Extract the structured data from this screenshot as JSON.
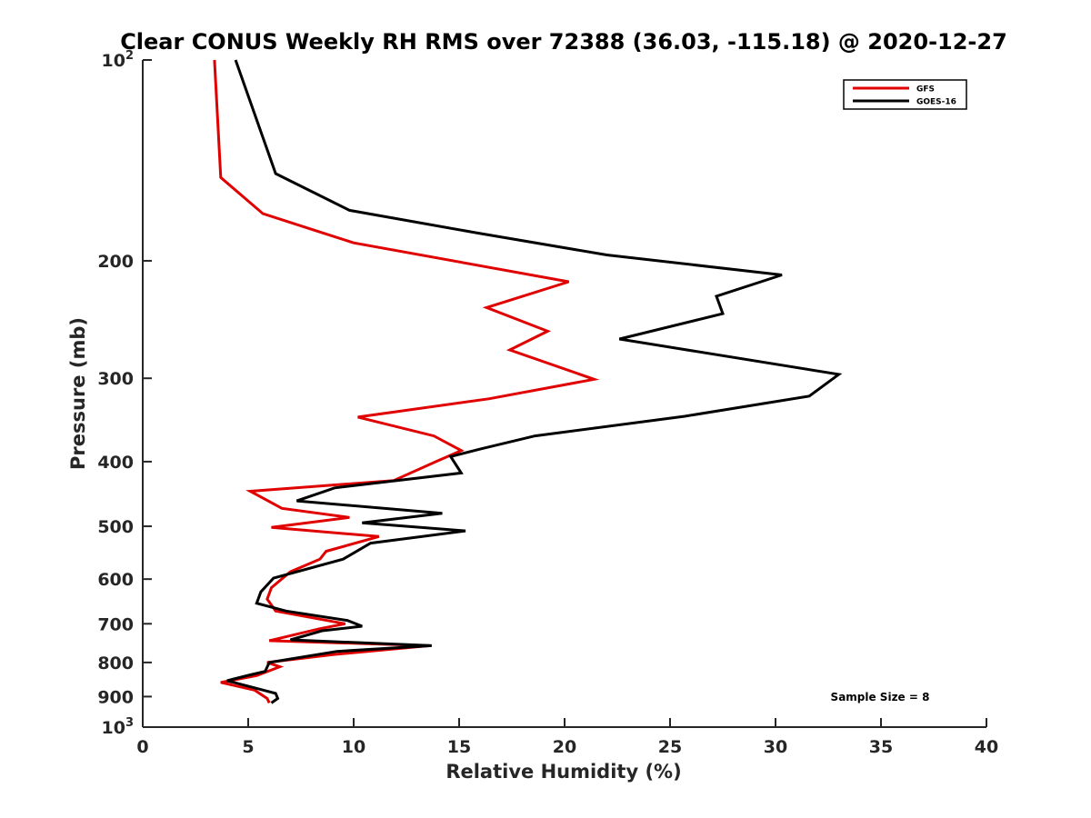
{
  "chart_data": {
    "type": "line",
    "title": "Clear CONUS Weekly RH RMS over 72388 (36.03, -115.18) @ 2020-12-27",
    "xlabel": "Relative Humidity (%)",
    "ylabel": "Pressure (mb)",
    "xlim": [
      0,
      40
    ],
    "ylim": [
      100,
      1000
    ],
    "y_scale": "log",
    "y_reversed": true,
    "grid": false,
    "legend_position": "top-right",
    "x_ticks": [
      "0",
      "5",
      "10",
      "15",
      "20",
      "25",
      "30",
      "35",
      "40"
    ],
    "y_ticks": [
      {
        "value": 100,
        "base": "10",
        "exp": "2"
      },
      {
        "value": 200,
        "label": "200"
      },
      {
        "value": 300,
        "label": "300"
      },
      {
        "value": 400,
        "label": "400"
      },
      {
        "value": 500,
        "label": "500"
      },
      {
        "value": 600,
        "label": "600"
      },
      {
        "value": 700,
        "label": "700"
      },
      {
        "value": 800,
        "label": "800"
      },
      {
        "value": 900,
        "label": "900"
      },
      {
        "value": 1000,
        "base": "10",
        "exp": "3"
      }
    ],
    "series": [
      {
        "name": "GFS",
        "color": "#e00000",
        "points": [
          [
            3.4,
            100
          ],
          [
            3.7,
            150
          ],
          [
            5.7,
            170
          ],
          [
            10,
            188
          ],
          [
            20.2,
            215
          ],
          [
            16.3,
            235
          ],
          [
            19.2,
            255
          ],
          [
            17.4,
            272
          ],
          [
            21.4,
            301
          ],
          [
            16.4,
            322
          ],
          [
            10.2,
            343
          ],
          [
            13.8,
            366
          ],
          [
            15.1,
            385
          ],
          [
            13.9,
            400
          ],
          [
            11.9,
            427
          ],
          [
            5.1,
            443
          ],
          [
            6.6,
            470
          ],
          [
            9.8,
            485
          ],
          [
            6.1,
            502
          ],
          [
            11.2,
            518
          ],
          [
            8.7,
            545
          ],
          [
            8.4,
            560
          ],
          [
            7,
            585
          ],
          [
            6.1,
            618
          ],
          [
            5.9,
            643
          ],
          [
            6.3,
            670
          ],
          [
            9.6,
            700
          ],
          [
            8.4,
            712
          ],
          [
            6,
            742
          ],
          [
            13.6,
            755
          ],
          [
            9.1,
            778
          ],
          [
            5.9,
            800
          ],
          [
            6.5,
            812
          ],
          [
            5.4,
            837
          ],
          [
            3.7,
            857
          ],
          [
            5.3,
            880
          ],
          [
            5.9,
            906
          ],
          [
            6,
            920
          ]
        ]
      },
      {
        "name": "GOES-16",
        "color": "#000000",
        "points": [
          [
            4.4,
            100
          ],
          [
            6.3,
            148
          ],
          [
            9.8,
            168
          ],
          [
            16,
            182
          ],
          [
            22,
            196
          ],
          [
            30.3,
            210
          ],
          [
            27.2,
            226
          ],
          [
            27.5,
            240
          ],
          [
            22.6,
            262
          ],
          [
            33,
            296
          ],
          [
            31.6,
            319
          ],
          [
            25.7,
            342
          ],
          [
            18.6,
            366
          ],
          [
            16,
            383
          ],
          [
            14.6,
            393
          ],
          [
            15.1,
            416
          ],
          [
            9.1,
            438
          ],
          [
            7.3,
            458
          ],
          [
            14.2,
            478
          ],
          [
            10.4,
            494
          ],
          [
            15.3,
            508
          ],
          [
            10.8,
            530
          ],
          [
            9.5,
            560
          ],
          [
            6.2,
            598
          ],
          [
            5.6,
            627
          ],
          [
            5.4,
            652
          ],
          [
            6.8,
            670
          ],
          [
            9.7,
            692
          ],
          [
            10.4,
            706
          ],
          [
            8.5,
            717
          ],
          [
            7,
            740
          ],
          [
            13.7,
            755
          ],
          [
            9.2,
            770
          ],
          [
            6,
            800
          ],
          [
            5.8,
            825
          ],
          [
            5.1,
            835
          ],
          [
            4,
            852
          ],
          [
            6.3,
            890
          ],
          [
            6.4,
            906
          ],
          [
            6.1,
            920
          ]
        ]
      }
    ],
    "annotation": "Sample Size = 8"
  }
}
